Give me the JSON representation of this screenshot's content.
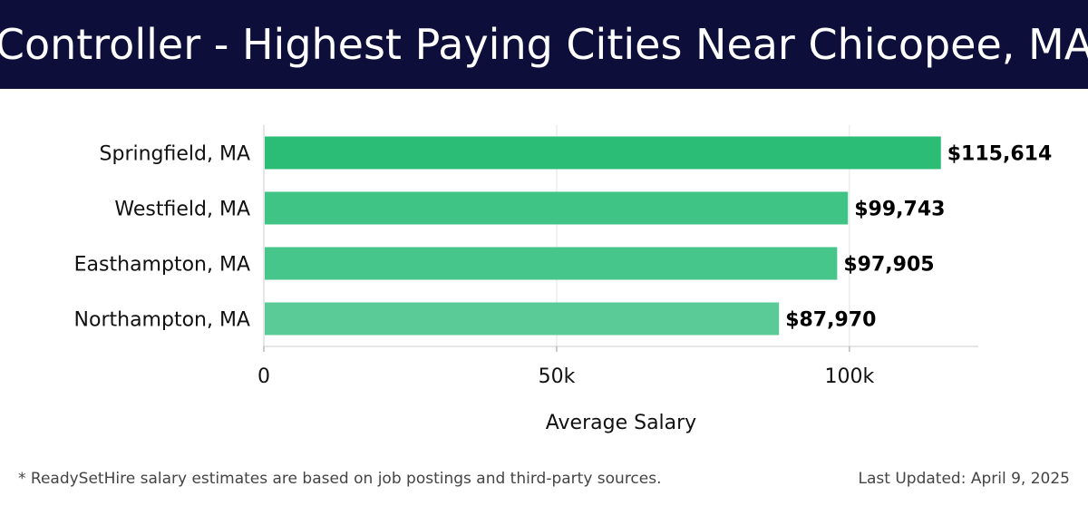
{
  "header": {
    "title": "Controller - Highest Paying Cities Near Chicopee, MA"
  },
  "chart_data": {
    "type": "bar",
    "orientation": "horizontal",
    "categories": [
      "Springfield, MA",
      "Westfield, MA",
      "Easthampton, MA",
      "Northampton, MA"
    ],
    "values": [
      115614,
      99743,
      97905,
      87970
    ],
    "value_labels": [
      "$115,614",
      "$99,743",
      "$97,905",
      "$87,970"
    ],
    "xlabel": "Average Salary",
    "ylabel": "",
    "xlim": [
      0,
      122000
    ],
    "x_ticks": [
      0,
      50000,
      100000
    ],
    "x_tick_labels": [
      "0",
      "50k",
      "100k"
    ],
    "grid": "vertical",
    "colors": [
      "#2bbd75",
      "#3fc486",
      "#47c68b",
      "#5acb97"
    ]
  },
  "footer": {
    "note": "* ReadySetHire salary estimates are based on job postings and third-party sources.",
    "updated": "Last Updated: April 9, 2025"
  }
}
